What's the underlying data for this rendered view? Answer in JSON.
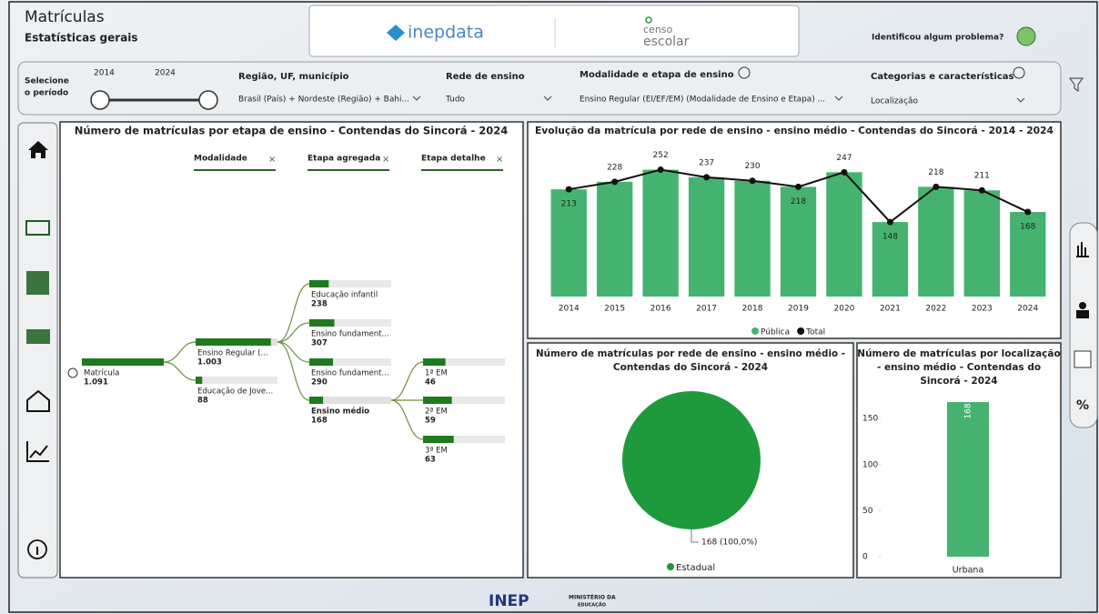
{
  "header": {
    "title": "Matrículas",
    "subtitle": "Estatísticas gerais",
    "logo_left": "inepdata",
    "logo_right_top": "censo",
    "logo_right_bottom": "escolar",
    "problem": "Identificou algum problema?"
  },
  "filters": {
    "period_label": [
      "Selecione",
      "o período"
    ],
    "period_start": "2014",
    "period_end": "2024",
    "region_label": "Região, UF, município",
    "region_value": "Brasil (País) + Nordeste (Região) + Bahi...",
    "network_label": "Rede de ensino",
    "network_value": "Tudo",
    "modality_label": "Modalidade e etapa de ensino",
    "modality_value": "Ensino Regular (EI/EF/EM) (Modalidade de Ensino e Etapa) ...",
    "category_label": "Categorias e características",
    "category_value": "Localização"
  },
  "tree": {
    "title": "Número de matrículas por etapa de ensino - Contendas do Sincorá - 2024",
    "levels": [
      "Modalidade",
      "Etapa agregada",
      "Etapa detalhe"
    ],
    "color": "#1f7a1f",
    "root": {
      "label": "Matrícula",
      "value": 1091,
      "value_label": "1.091",
      "children": [
        {
          "label": "Ensino Regular (...",
          "value": 1003,
          "value_label": "1.003",
          "children": [
            {
              "label": "Educação infantil",
              "value": 238
            },
            {
              "label": "Ensino fundament...",
              "value": 307
            },
            {
              "label": "Ensino fundament...",
              "value": 290
            },
            {
              "label": "Ensino médio",
              "value": 168,
              "children": [
                {
                  "label": "1ª EM",
                  "value": 46
                },
                {
                  "label": "2ª EM",
                  "value": 59
                },
                {
                  "label": "3ª EM",
                  "value": 63
                }
              ]
            }
          ]
        },
        {
          "label": "Educação de Jove...",
          "value": 88
        }
      ]
    }
  },
  "evolution": {
    "type": "bar",
    "title": "Evolução da matrícula por rede de ensino - ensino médio - Contendas do Sincorá - 2014 - 2024",
    "categories": [
      "2014",
      "2015",
      "2016",
      "2017",
      "2018",
      "2019",
      "2020",
      "2021",
      "2022",
      "2023",
      "2024"
    ],
    "series": [
      {
        "name": "Pública",
        "type": "bar",
        "color": "#45b36f",
        "values": [
          213,
          228,
          252,
          237,
          230,
          218,
          247,
          148,
          218,
          211,
          168
        ]
      },
      {
        "name": "Total",
        "type": "line",
        "color": "#111111",
        "values": [
          213,
          228,
          252,
          237,
          230,
          218,
          247,
          148,
          218,
          211,
          168
        ]
      }
    ],
    "ylim": [
      0,
      300
    ]
  },
  "pie": {
    "type": "pie",
    "title_lines": [
      "Número de matrículas por rede de ensino - ensino médio -",
      "Contendas do Sincorá - 2024"
    ],
    "categories": [
      "Estadual"
    ],
    "values": [
      168
    ],
    "value_labels": [
      "168 (100,0%)"
    ],
    "colors": [
      "#1e9a3c"
    ]
  },
  "location": {
    "type": "bar",
    "title_lines": [
      "Número de matrículas por localização",
      "- ensino médio - Contendas do",
      "Sincorá - 2024"
    ],
    "categories": [
      "Urbana"
    ],
    "values": [
      168
    ],
    "color": "#45b36f",
    "ylim": [
      0,
      170
    ],
    "yticks": [
      0,
      50,
      100,
      150
    ]
  },
  "right_nav_label": "%",
  "footer": {
    "brand": "INEP",
    "ministry_1": "MINISTÉRIO DA",
    "ministry_2": "EDUCAÇÃO"
  }
}
